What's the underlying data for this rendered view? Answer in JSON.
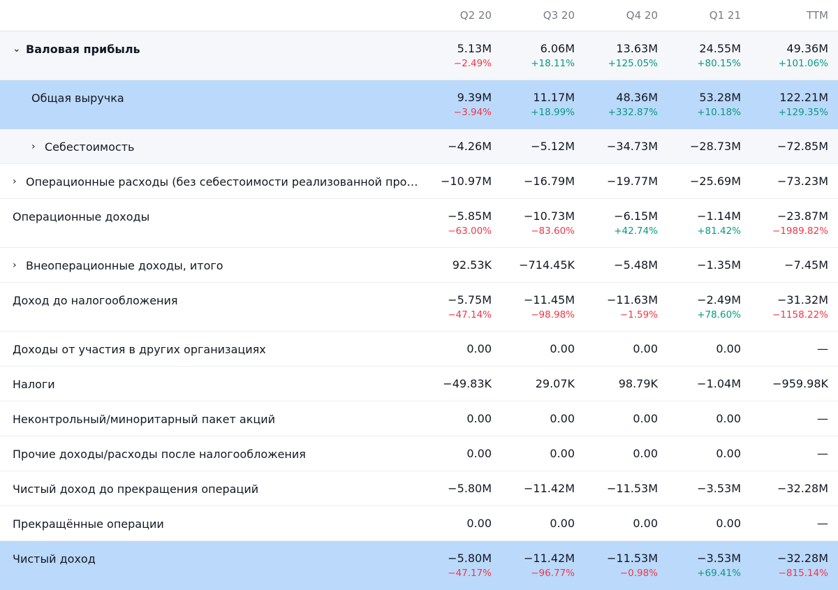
{
  "columns": [
    "Q2 20",
    "Q3 20",
    "Q4 20",
    "Q1 21",
    "TTM"
  ],
  "rows": [
    {
      "label": "Валовая прибыль",
      "chevron": "⌄",
      "bold": true,
      "style": "sub",
      "indent": 0,
      "values": [
        "5.13M",
        "6.06M",
        "13.63M",
        "24.55M",
        "49.36M"
      ],
      "changes": [
        "−2.49%",
        "+18.11%",
        "+125.05%",
        "+80.15%",
        "+101.06%"
      ]
    },
    {
      "label": "Общая выручка",
      "chevron": "",
      "bold": false,
      "style": "hl",
      "indent": 1,
      "values": [
        "9.39M",
        "11.17M",
        "48.36M",
        "53.28M",
        "122.21M"
      ],
      "changes": [
        "−3.94%",
        "+18.99%",
        "+332.87%",
        "+10.18%",
        "+129.35%"
      ]
    },
    {
      "label": "Себестоимость",
      "chevron": "›",
      "bold": false,
      "style": "sub",
      "indent": 1,
      "values": [
        "−4.26M",
        "−5.12M",
        "−34.73M",
        "−28.73M",
        "−72.85M"
      ],
      "changes": []
    },
    {
      "label": "Операционные расходы (без себестоимости реализованной проду…",
      "chevron": "›",
      "bold": false,
      "style": "",
      "indent": 0,
      "values": [
        "−10.97M",
        "−16.79M",
        "−19.77M",
        "−25.69M",
        "−73.23M"
      ],
      "changes": []
    },
    {
      "label": "Операционные доходы",
      "chevron": "",
      "bold": false,
      "style": "",
      "indent": 0,
      "values": [
        "−5.85M",
        "−10.73M",
        "−6.15M",
        "−1.14M",
        "−23.87M"
      ],
      "changes": [
        "−63.00%",
        "−83.60%",
        "+42.74%",
        "+81.42%",
        "−1989.82%"
      ]
    },
    {
      "label": "Внеоперационные доходы, итого",
      "chevron": "›",
      "bold": false,
      "style": "",
      "indent": 0,
      "values": [
        "92.53K",
        "−714.45K",
        "−5.48M",
        "−1.35M",
        "−7.45M"
      ],
      "changes": []
    },
    {
      "label": "Доход до налогообложения",
      "chevron": "",
      "bold": false,
      "style": "",
      "indent": 0,
      "values": [
        "−5.75M",
        "−11.45M",
        "−11.63M",
        "−2.49M",
        "−31.32M"
      ],
      "changes": [
        "−47.14%",
        "−98.98%",
        "−1.59%",
        "+78.60%",
        "−1158.22%"
      ]
    },
    {
      "label": "Доходы от участия в других организациях",
      "chevron": "",
      "bold": false,
      "style": "",
      "indent": 0,
      "values": [
        "0.00",
        "0.00",
        "0.00",
        "0.00",
        "—"
      ],
      "changes": []
    },
    {
      "label": "Налоги",
      "chevron": "",
      "bold": false,
      "style": "",
      "indent": 0,
      "values": [
        "−49.83K",
        "29.07K",
        "98.79K",
        "−1.04M",
        "−959.98K"
      ],
      "changes": []
    },
    {
      "label": "Неконтрольный/миноритарный пакет акций",
      "chevron": "",
      "bold": false,
      "style": "",
      "indent": 0,
      "values": [
        "0.00",
        "0.00",
        "0.00",
        "0.00",
        "—"
      ],
      "changes": []
    },
    {
      "label": "Прочие доходы/расходы после налогообложения",
      "chevron": "",
      "bold": false,
      "style": "",
      "indent": 0,
      "values": [
        "0.00",
        "0.00",
        "0.00",
        "0.00",
        "—"
      ],
      "changes": []
    },
    {
      "label": "Чистый доход до прекращения операций",
      "chevron": "",
      "bold": false,
      "style": "",
      "indent": 0,
      "values": [
        "−5.80M",
        "−11.42M",
        "−11.53M",
        "−3.53M",
        "−32.28M"
      ],
      "changes": []
    },
    {
      "label": "Прекращённые операции",
      "chevron": "",
      "bold": false,
      "style": "",
      "indent": 0,
      "values": [
        "0.00",
        "0.00",
        "0.00",
        "0.00",
        "—"
      ],
      "changes": []
    },
    {
      "label": "Чистый доход",
      "chevron": "",
      "bold": false,
      "style": "hl",
      "indent": 0,
      "values": [
        "−5.80M",
        "−11.42M",
        "−11.53M",
        "−3.53M",
        "−32.28M"
      ],
      "changes": [
        "−47.17%",
        "−96.77%",
        "−0.98%",
        "+69.41%",
        "−815.14%"
      ]
    }
  ],
  "colors": {
    "negative": "#f23645",
    "positive": "#089981",
    "highlight": "#bbd9fb",
    "subrow": "#f5f7fb",
    "header_text": "#787b86"
  }
}
